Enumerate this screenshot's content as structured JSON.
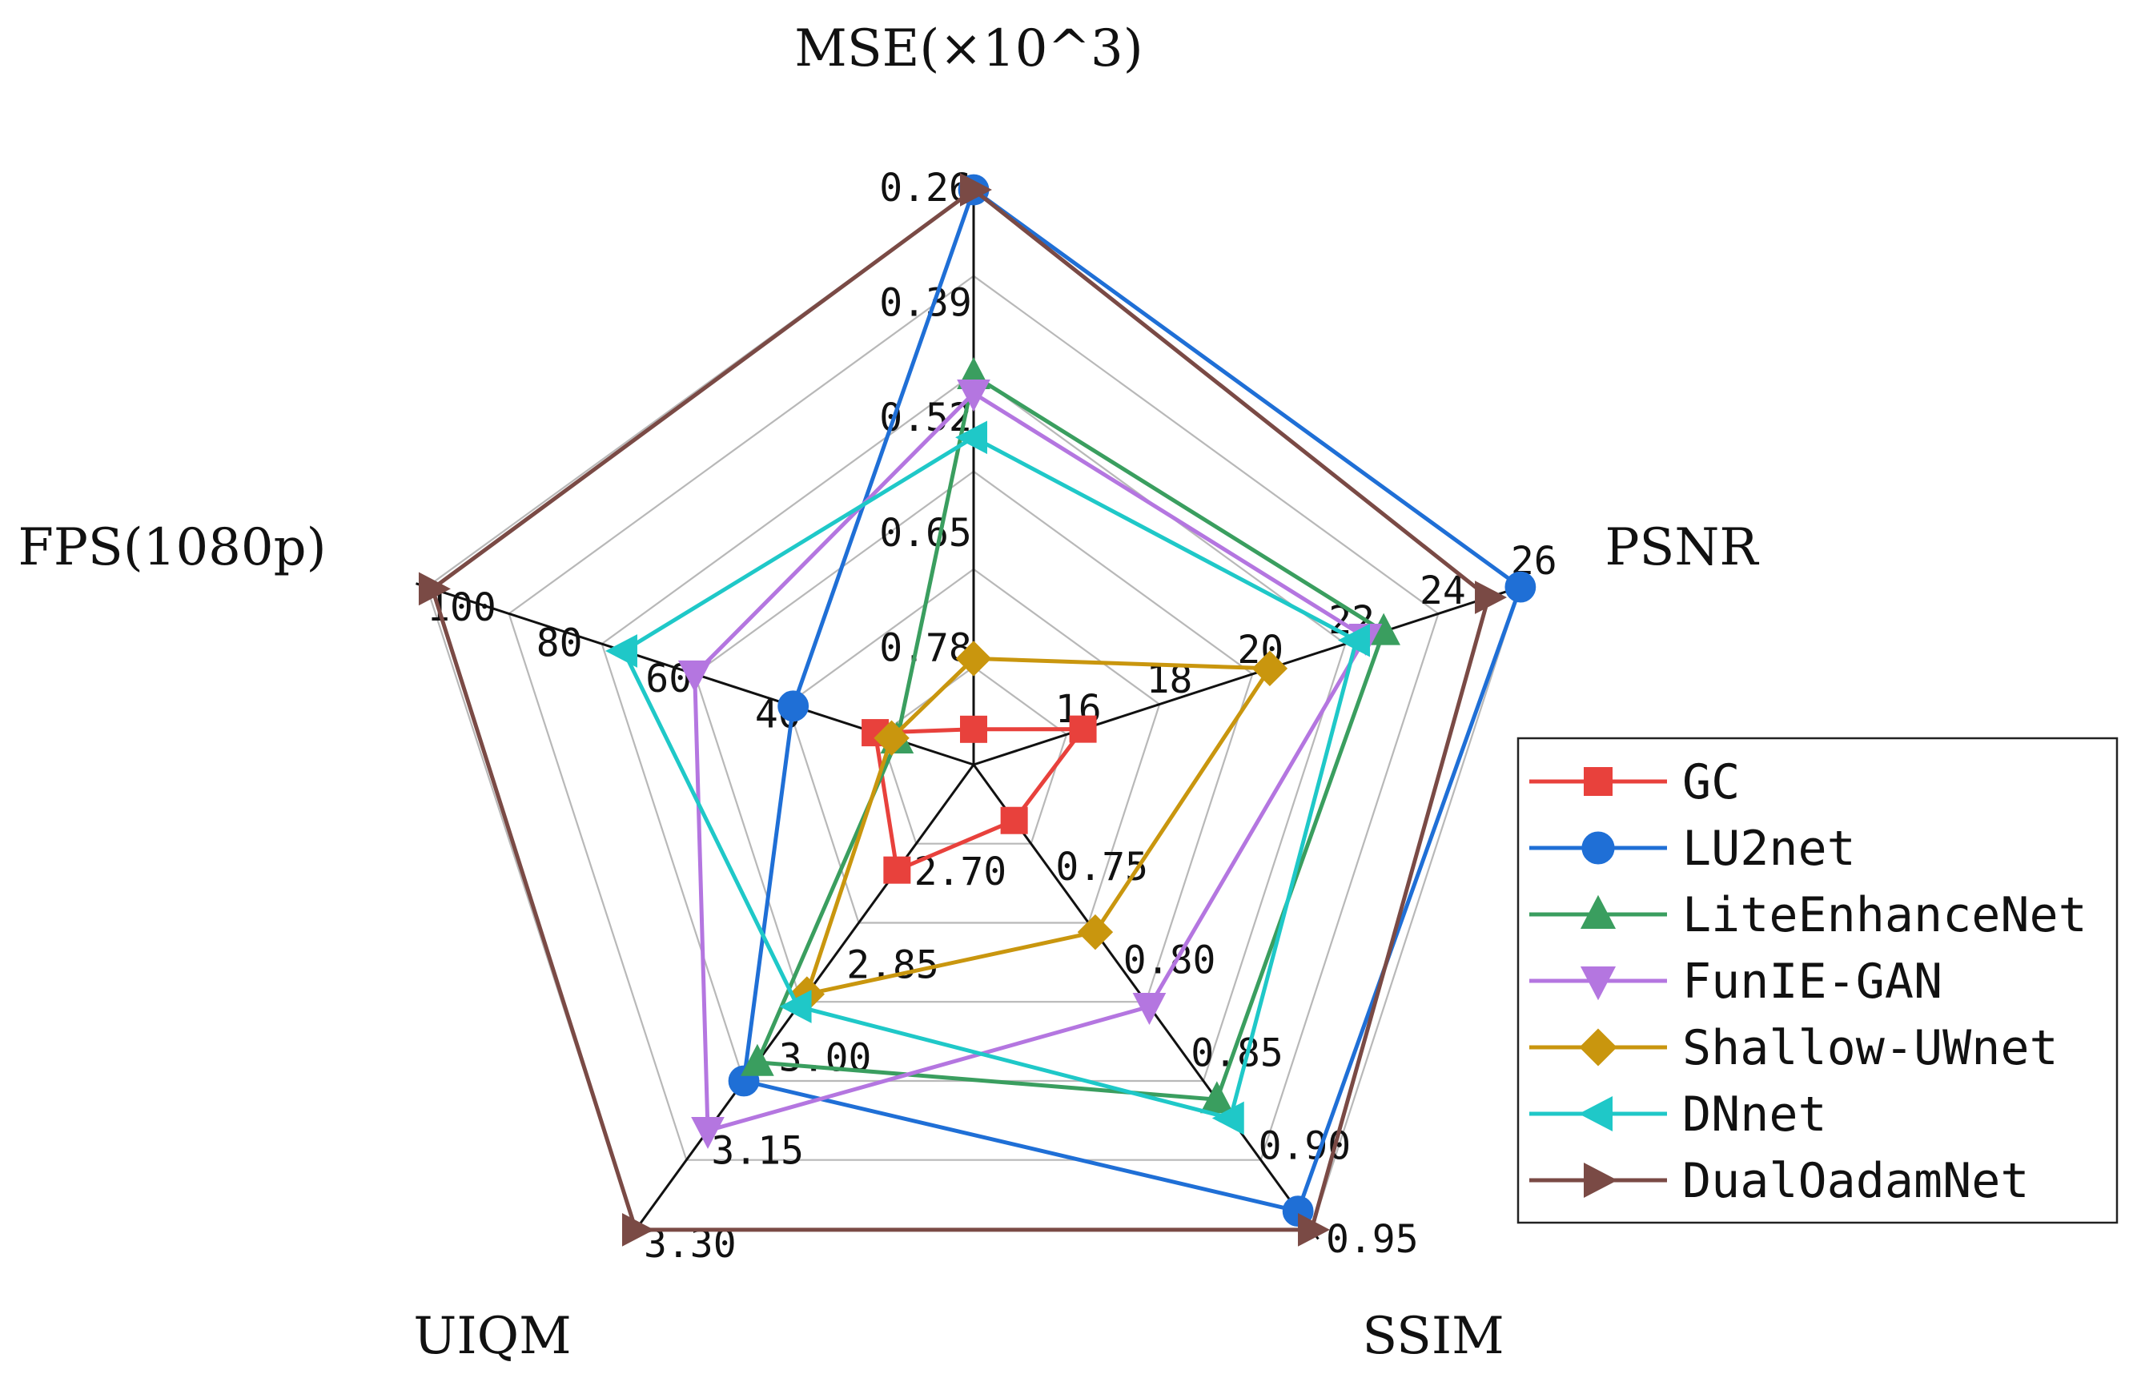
{
  "chart_data": {
    "type": "radar",
    "title": "",
    "grid": true,
    "legend_position": "right",
    "axes": [
      {
        "name": "MSE(×10^3)",
        "ticks": [
          "0.26",
          "0.39",
          "0.52",
          "0.65",
          "0.78"
        ],
        "range": [
          0.91,
          0.26
        ]
      },
      {
        "name": "PSNR",
        "ticks": [
          "16",
          "18",
          "20",
          "22",
          "24",
          "26"
        ],
        "range": [
          14,
          26
        ]
      },
      {
        "name": "SSIM",
        "ticks": [
          "0.75",
          "0.80",
          "0.85",
          "0.90",
          "0.95"
        ],
        "range": [
          0.7,
          0.95
        ]
      },
      {
        "name": "UIQM",
        "ticks": [
          "2.70",
          "2.85",
          "3.00",
          "3.15",
          "3.30"
        ],
        "range": [
          2.55,
          3.3
        ]
      },
      {
        "name": "FPS(1080p)",
        "ticks": [
          "40",
          "60",
          "80",
          "100"
        ],
        "range": [
          0,
          100
        ]
      }
    ],
    "series": [
      {
        "name": "GC",
        "color": "#e8413c",
        "marker": "square",
        "values": [
          0.87,
          16.4,
          0.73,
          2.72,
          18
        ]
      },
      {
        "name": "LU2net",
        "color": "#1f6fd6",
        "marker": "circle",
        "values": [
          0.26,
          26.0,
          0.94,
          3.06,
          33
        ]
      },
      {
        "name": "LiteEnhanceNet",
        "color": "#3a9e5f",
        "marker": "triangle-up",
        "values": [
          0.47,
          23.0,
          0.88,
          3.03,
          14
        ]
      },
      {
        "name": "FunIE-GAN",
        "color": "#b476e0",
        "marker": "triangle-down",
        "values": [
          0.49,
          22.6,
          0.83,
          3.14,
          51
        ]
      },
      {
        "name": "Shallow-UWnet",
        "color": "#c9960e",
        "marker": "diamond",
        "values": [
          0.79,
          20.5,
          0.79,
          2.92,
          15
        ]
      },
      {
        "name": "DNnet",
        "color": "#1fc8c8",
        "marker": "triangle-left",
        "values": [
          0.54,
          22.4,
          0.89,
          2.94,
          64
        ]
      },
      {
        "name": "DualOadamNet",
        "color": "#7a4a45",
        "marker": "triangle-right",
        "values": [
          0.26,
          25.3,
          0.95,
          3.3,
          99
        ]
      }
    ]
  }
}
